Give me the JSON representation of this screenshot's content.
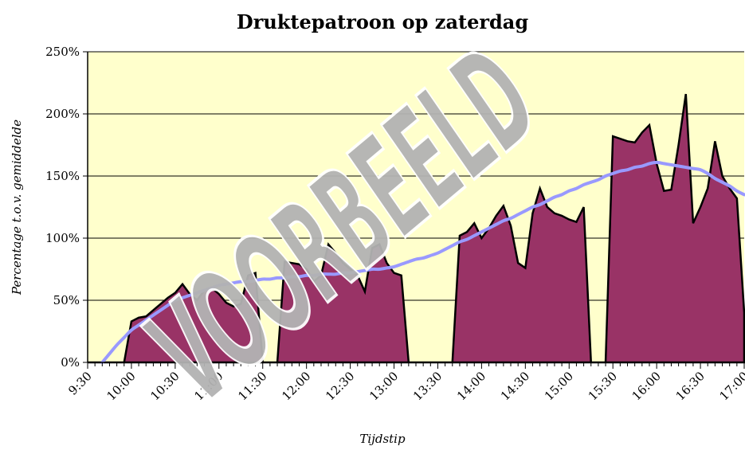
{
  "chart_data": {
    "type": "area",
    "title": "Druktepatroon op zaterdag",
    "xlabel": "Tijdstip",
    "ylabel": "Percentage t.o.v. gemiddelde",
    "watermark": "VOORBEELD",
    "categories": [
      "9:30",
      null,
      null,
      null,
      null,
      null,
      "10:00",
      null,
      null,
      null,
      null,
      null,
      "10:30",
      null,
      null,
      null,
      null,
      null,
      "11:00",
      null,
      null,
      null,
      null,
      null,
      "11:30",
      null,
      null,
      null,
      null,
      null,
      "12:00",
      null,
      null,
      null,
      null,
      null,
      "12:30",
      null,
      null,
      null,
      null,
      null,
      "13:00",
      null,
      null,
      null,
      null,
      null,
      "13:30",
      null,
      null,
      null,
      null,
      null,
      "14:00",
      null,
      null,
      null,
      null,
      null,
      "14:30",
      null,
      null,
      null,
      null,
      null,
      "15:00",
      null,
      null,
      null,
      null,
      null,
      "15:30",
      null,
      null,
      null,
      null,
      null,
      "16:00",
      null,
      null,
      null,
      null,
      null,
      "16:30",
      null,
      null,
      null,
      null,
      null,
      "17:00"
    ],
    "series": [
      {
        "color": "#993366",
        "values": [
          0,
          0,
          0,
          0,
          0,
          0,
          33,
          36,
          37,
          42,
          47,
          52,
          56,
          63,
          55,
          50,
          58,
          60,
          55,
          48,
          45,
          47,
          70,
          72,
          0,
          0,
          0,
          81,
          80,
          79,
          75,
          65,
          70,
          95,
          88,
          80,
          75,
          70,
          57,
          92,
          95,
          80,
          72,
          70,
          0,
          0,
          0,
          0,
          0,
          0,
          0,
          102,
          105,
          112,
          100,
          108,
          118,
          126,
          110,
          80,
          76,
          120,
          140,
          125,
          120,
          118,
          115,
          113,
          125,
          0,
          0,
          0,
          182,
          180,
          178,
          177,
          185,
          191,
          160,
          138,
          139,
          175,
          216,
          112,
          125,
          140,
          178,
          150,
          140,
          132,
          40
        ]
      },
      {
        "color": "#9999ff",
        "values": [
          null,
          null,
          0,
          7,
          14,
          20,
          26,
          30,
          34,
          38,
          42,
          46,
          50,
          52,
          54,
          56,
          58,
          60,
          62,
          63,
          64,
          65,
          65,
          66,
          67,
          67,
          68,
          68,
          69,
          69,
          70,
          70,
          71,
          71,
          71,
          72,
          72,
          73,
          74,
          75,
          75,
          76,
          77,
          79,
          81,
          83,
          84,
          86,
          88,
          91,
          94,
          97,
          99,
          102,
          105,
          108,
          111,
          114,
          116,
          119,
          122,
          125,
          127,
          130,
          133,
          135,
          138,
          140,
          143,
          145,
          147,
          150,
          152,
          154,
          155,
          157,
          158,
          160,
          161,
          160,
          159,
          158,
          157,
          156,
          155,
          152,
          148,
          145,
          142,
          138,
          135
        ]
      }
    ],
    "ylim": [
      0,
      250
    ],
    "yticks": [
      {
        "value": 0,
        "label": "0%"
      },
      {
        "value": 50,
        "label": "50%"
      },
      {
        "value": 100,
        "label": "100%"
      },
      {
        "value": 150,
        "label": "150%"
      },
      {
        "value": 200,
        "label": "200%"
      },
      {
        "value": 250,
        "label": "250%"
      }
    ],
    "grid": true,
    "background": "#ffffcc"
  }
}
